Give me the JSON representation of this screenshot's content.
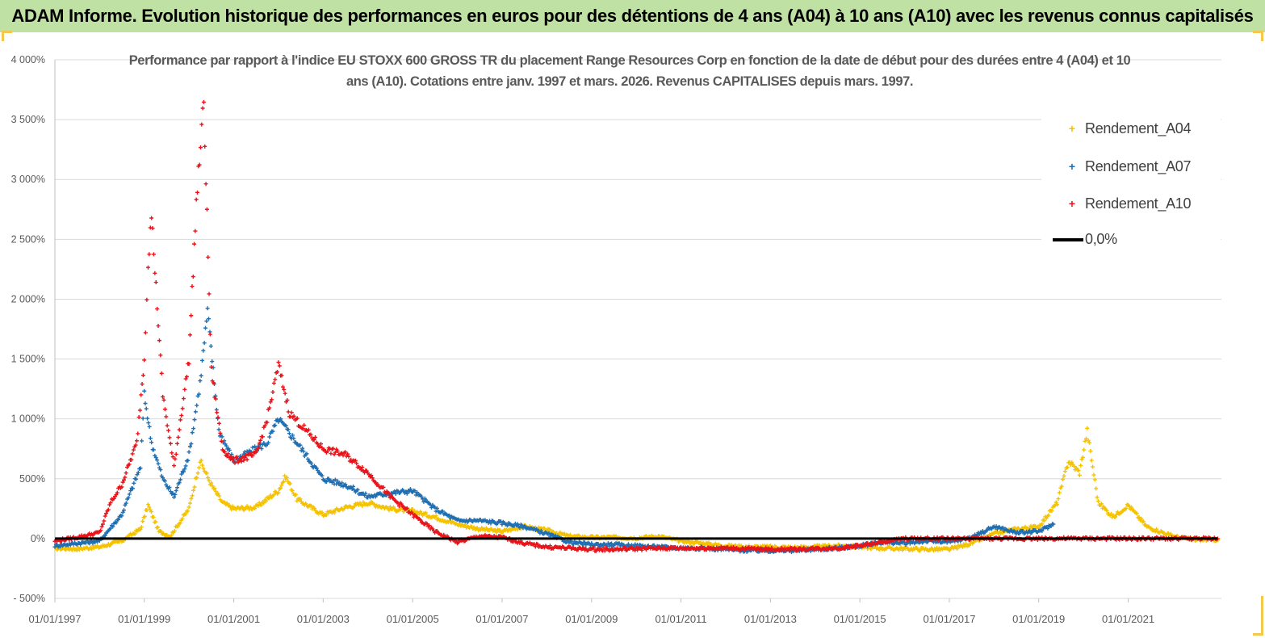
{
  "banner": {
    "title": "ADAM Informe. Evolution historique des performances en euros pour des détentions de 4 ans (A04) à 10 ans (A10) avec les revenus connus capitalisés",
    "color": "#bfe2a4"
  },
  "chart_data": {
    "type": "scatter",
    "title": "Performance par rapport à l'indice EU STOXX 600 GROSS TR  du placement Range Resources Corp en fonction de la date de début pour des durées entre 4 (A04) et 10 ans (A10). Cotations entre janv. 1997 et mars. 2026. Revenus CAPITALISES depuis mars. 1997.",
    "xlabel": "",
    "ylabel": "",
    "x_type": "date",
    "xlim": [
      "1997-01-01",
      "2023-02-01"
    ],
    "ylim": [
      -500,
      4000
    ],
    "y_ticks": [
      -500,
      0,
      500,
      1000,
      1500,
      2000,
      2500,
      3000,
      3500,
      4000
    ],
    "y_tick_labels": [
      "- 500%",
      "0%",
      "500%",
      "1 000%",
      "1 500%",
      "2 000%",
      "2 500%",
      "3 000%",
      "3 500%",
      "4 000%"
    ],
    "x_tick_labels": [
      "01/01/1997",
      "01/01/1999",
      "01/01/2001",
      "01/01/2003",
      "01/01/2005",
      "01/01/2007",
      "01/01/2009",
      "01/01/2011",
      "01/01/2013",
      "01/01/2015",
      "01/01/2017",
      "01/01/2019",
      "01/01/2021"
    ],
    "x_ticks": [
      "1997-01-01",
      "1999-01-01",
      "2001-01-01",
      "2003-01-01",
      "2005-01-01",
      "2007-01-01",
      "2009-01-01",
      "2011-01-01",
      "2013-01-01",
      "2015-01-01",
      "2017-01-01",
      "2019-01-01",
      "2021-01-01"
    ],
    "grid": "horizontal",
    "legend_position": "top-right",
    "series": [
      {
        "name": "Rendement_A04",
        "color": "#f5c200",
        "marker": "+",
        "points": [
          [
            "1997-01-01",
            -80
          ],
          [
            "1997-07-01",
            -85
          ],
          [
            "1998-01-01",
            -70
          ],
          [
            "1998-07-01",
            -20
          ],
          [
            "1998-12-01",
            80
          ],
          [
            "1999-02-01",
            280
          ],
          [
            "1999-05-01",
            60
          ],
          [
            "1999-08-01",
            20
          ],
          [
            "2000-01-01",
            250
          ],
          [
            "2000-04-01",
            650
          ],
          [
            "2000-07-01",
            450
          ],
          [
            "2000-10-01",
            300
          ],
          [
            "2001-01-01",
            250
          ],
          [
            "2001-07-01",
            260
          ],
          [
            "2002-01-01",
            400
          ],
          [
            "2002-03-01",
            520
          ],
          [
            "2002-06-01",
            330
          ],
          [
            "2003-01-01",
            200
          ],
          [
            "2003-07-01",
            260
          ],
          [
            "2004-01-01",
            300
          ],
          [
            "2004-07-01",
            250
          ],
          [
            "2005-01-01",
            230
          ],
          [
            "2005-07-01",
            180
          ],
          [
            "2006-01-01",
            120
          ],
          [
            "2006-07-01",
            80
          ],
          [
            "2007-01-01",
            60
          ],
          [
            "2007-07-01",
            100
          ],
          [
            "2008-01-01",
            70
          ],
          [
            "2008-07-01",
            20
          ],
          [
            "2009-01-01",
            10
          ],
          [
            "2009-07-01",
            10
          ],
          [
            "2010-01-01",
            5
          ],
          [
            "2010-07-01",
            20
          ],
          [
            "2011-01-01",
            -20
          ],
          [
            "2011-07-01",
            -40
          ],
          [
            "2012-01-01",
            -60
          ],
          [
            "2012-07-01",
            -70
          ],
          [
            "2013-01-01",
            -70
          ],
          [
            "2013-07-01",
            -75
          ],
          [
            "2014-01-01",
            -70
          ],
          [
            "2014-07-01",
            -60
          ],
          [
            "2015-01-01",
            -70
          ],
          [
            "2015-07-01",
            -80
          ],
          [
            "2016-01-01",
            -85
          ],
          [
            "2016-07-01",
            -90
          ],
          [
            "2017-01-01",
            -90
          ],
          [
            "2017-07-01",
            -40
          ],
          [
            "2018-01-01",
            40
          ],
          [
            "2018-07-01",
            80
          ],
          [
            "2019-01-01",
            100
          ],
          [
            "2019-06-01",
            300
          ],
          [
            "2019-09-01",
            650
          ],
          [
            "2019-12-01",
            550
          ],
          [
            "2020-02-01",
            900
          ],
          [
            "2020-05-01",
            300
          ],
          [
            "2020-09-01",
            180
          ],
          [
            "2021-01-01",
            280
          ],
          [
            "2021-06-01",
            100
          ],
          [
            "2022-01-01",
            20
          ],
          [
            "2022-07-01",
            -10
          ],
          [
            "2023-01-01",
            -10
          ]
        ]
      },
      {
        "name": "Rendement_A07",
        "color": "#1f6fb2",
        "marker": "+",
        "points": [
          [
            "1997-01-01",
            -60
          ],
          [
            "1997-07-01",
            -40
          ],
          [
            "1998-01-01",
            -20
          ],
          [
            "1998-07-01",
            200
          ],
          [
            "1998-12-01",
            600
          ],
          [
            "1999-01-01",
            1200
          ],
          [
            "1999-03-01",
            800
          ],
          [
            "1999-06-01",
            500
          ],
          [
            "1999-09-01",
            350
          ],
          [
            "2000-01-01",
            700
          ],
          [
            "2000-04-01",
            1300
          ],
          [
            "2000-06-01",
            1900
          ],
          [
            "2000-09-01",
            900
          ],
          [
            "2001-01-01",
            650
          ],
          [
            "2001-07-01",
            750
          ],
          [
            "2001-10-01",
            800
          ],
          [
            "2002-01-01",
            1000
          ],
          [
            "2002-06-01",
            800
          ],
          [
            "2003-01-01",
            500
          ],
          [
            "2003-07-01",
            450
          ],
          [
            "2004-01-01",
            350
          ],
          [
            "2004-07-01",
            380
          ],
          [
            "2005-01-01",
            400
          ],
          [
            "2005-07-01",
            250
          ],
          [
            "2006-01-01",
            150
          ],
          [
            "2006-07-01",
            150
          ],
          [
            "2007-01-01",
            130
          ],
          [
            "2007-07-01",
            100
          ],
          [
            "2008-01-01",
            40
          ],
          [
            "2008-07-01",
            -30
          ],
          [
            "2009-01-01",
            -50
          ],
          [
            "2009-07-01",
            -50
          ],
          [
            "2010-01-01",
            -60
          ],
          [
            "2010-07-01",
            -70
          ],
          [
            "2011-01-01",
            -80
          ],
          [
            "2011-07-01",
            -80
          ],
          [
            "2012-01-01",
            -90
          ],
          [
            "2012-07-01",
            -100
          ],
          [
            "2013-01-01",
            -100
          ],
          [
            "2013-07-01",
            -100
          ],
          [
            "2014-01-01",
            -90
          ],
          [
            "2014-07-01",
            -80
          ],
          [
            "2015-01-01",
            -60
          ],
          [
            "2015-07-01",
            -30
          ],
          [
            "2016-01-01",
            -40
          ],
          [
            "2016-07-01",
            -20
          ],
          [
            "2017-01-01",
            -30
          ],
          [
            "2017-07-01",
            10
          ],
          [
            "2018-01-01",
            100
          ],
          [
            "2018-07-01",
            50
          ],
          [
            "2019-01-01",
            60
          ],
          [
            "2019-05-01",
            120
          ]
        ]
      },
      {
        "name": "Rendement_A10",
        "color": "#e8141b",
        "marker": "+",
        "points": [
          [
            "1997-01-01",
            -20
          ],
          [
            "1997-07-01",
            10
          ],
          [
            "1998-01-01",
            50
          ],
          [
            "1998-04-01",
            300
          ],
          [
            "1998-07-01",
            450
          ],
          [
            "1998-11-01",
            800
          ],
          [
            "1999-01-01",
            1500
          ],
          [
            "1999-02-01",
            2300
          ],
          [
            "1999-03-01",
            2700
          ],
          [
            "1999-06-01",
            1200
          ],
          [
            "1999-09-01",
            600
          ],
          [
            "2000-01-01",
            1500
          ],
          [
            "2000-03-01",
            2800
          ],
          [
            "2000-05-01",
            3650
          ],
          [
            "2000-07-01",
            1400
          ],
          [
            "2000-10-01",
            750
          ],
          [
            "2001-01-01",
            650
          ],
          [
            "2001-07-01",
            700
          ],
          [
            "2001-10-01",
            1000
          ],
          [
            "2002-01-01",
            1450
          ],
          [
            "2002-04-01",
            1050
          ],
          [
            "2002-07-01",
            950
          ],
          [
            "2003-01-01",
            750
          ],
          [
            "2003-07-01",
            700
          ],
          [
            "2004-01-01",
            550
          ],
          [
            "2004-07-01",
            350
          ],
          [
            "2005-01-01",
            200
          ],
          [
            "2005-07-01",
            60
          ],
          [
            "2006-01-01",
            -30
          ],
          [
            "2006-07-01",
            20
          ],
          [
            "2007-01-01",
            10
          ],
          [
            "2007-07-01",
            -40
          ],
          [
            "2008-01-01",
            -70
          ],
          [
            "2008-07-01",
            -80
          ],
          [
            "2009-01-01",
            -90
          ],
          [
            "2009-07-01",
            -90
          ],
          [
            "2010-01-01",
            -85
          ],
          [
            "2010-07-01",
            -80
          ],
          [
            "2011-01-01",
            -80
          ],
          [
            "2011-07-01",
            -80
          ],
          [
            "2012-01-01",
            -80
          ],
          [
            "2012-07-01",
            -85
          ],
          [
            "2013-01-01",
            -90
          ],
          [
            "2013-07-01",
            -90
          ],
          [
            "2014-01-01",
            -85
          ],
          [
            "2014-07-01",
            -80
          ],
          [
            "2015-01-01",
            -60
          ],
          [
            "2015-07-01",
            -30
          ],
          [
            "2016-01-01",
            0
          ],
          [
            "2017-01-01",
            0
          ],
          [
            "2018-01-01",
            0
          ],
          [
            "2019-01-01",
            0
          ],
          [
            "2020-01-01",
            0
          ],
          [
            "2021-01-01",
            0
          ],
          [
            "2022-01-01",
            0
          ],
          [
            "2023-01-01",
            0
          ]
        ]
      },
      {
        "name": "0,0%",
        "color": "#000000",
        "marker": "line",
        "points": [
          [
            "1997-01-01",
            0
          ],
          [
            "2023-01-01",
            0
          ]
        ]
      }
    ]
  }
}
